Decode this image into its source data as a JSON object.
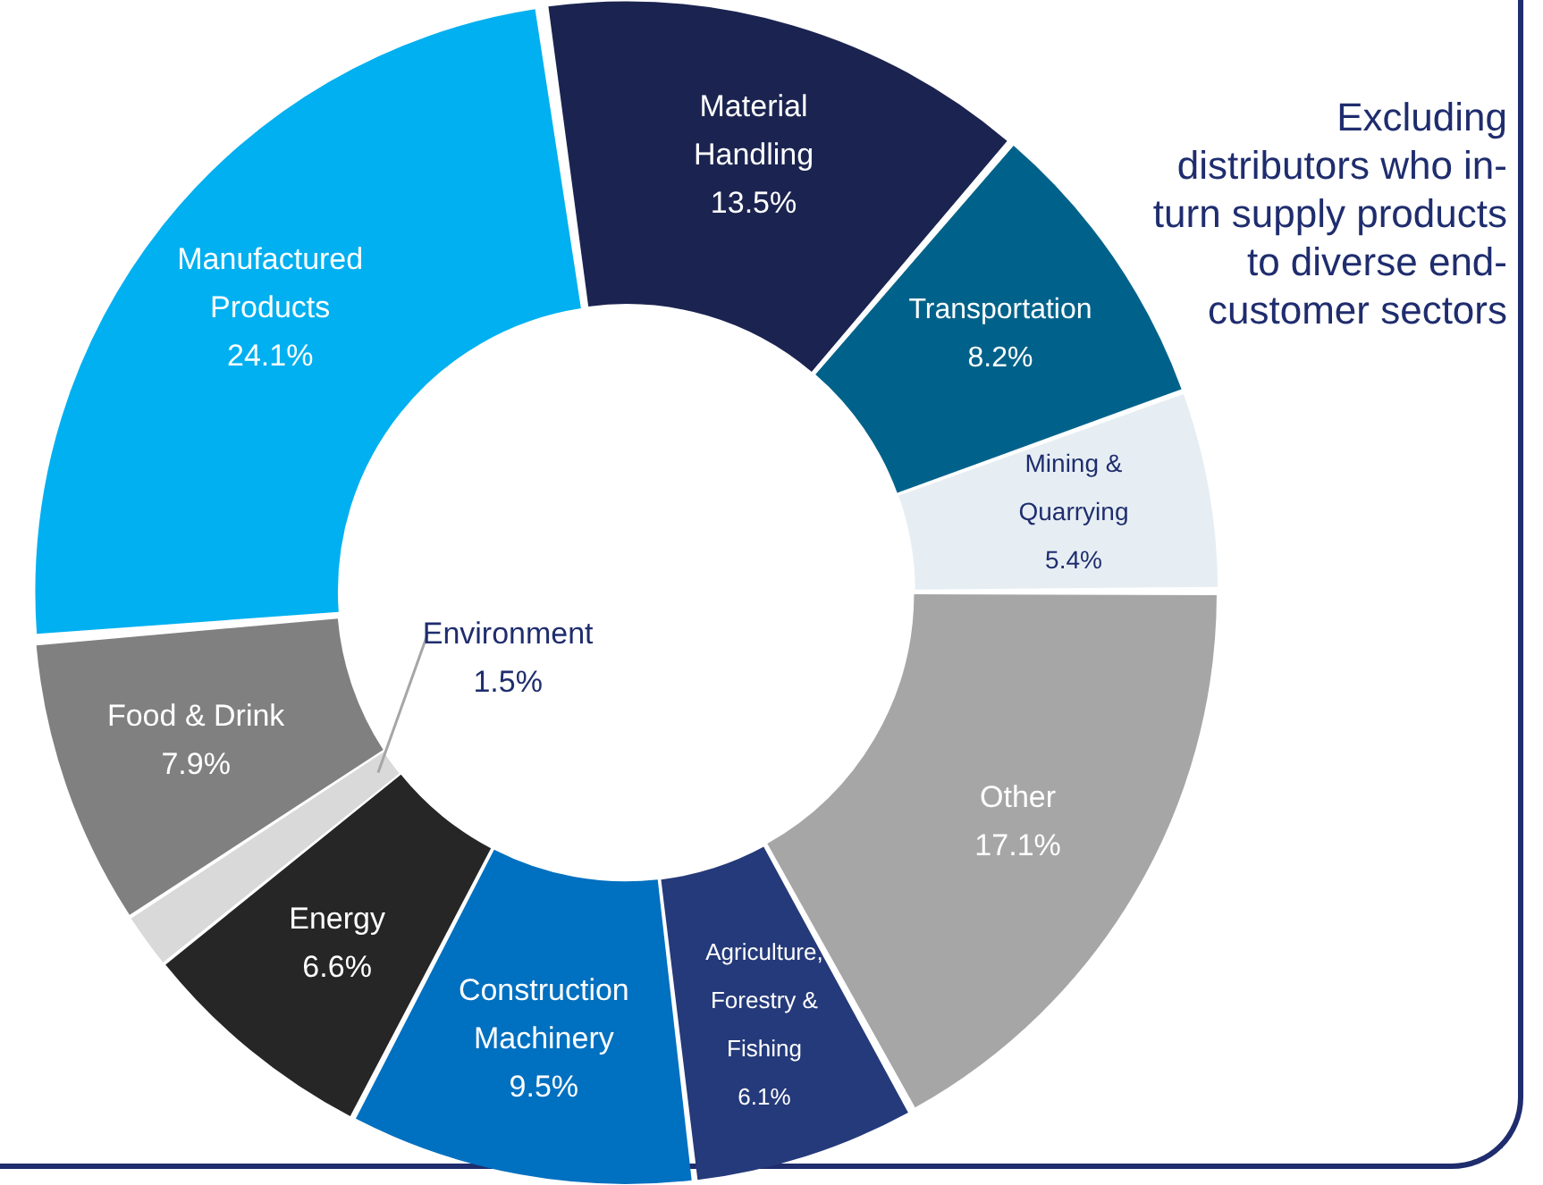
{
  "chart_data": {
    "type": "donut",
    "categories": [
      "Material Handling",
      "Transportation",
      "Mining & Quarrying",
      "Other",
      "Agriculture, Forestry & Fishing",
      "Construction Machinery",
      "Energy",
      "Environment",
      "Food & Drink",
      "Manufactured Products"
    ],
    "values": [
      13.5,
      8.2,
      5.4,
      17.1,
      6.1,
      9.5,
      6.6,
      1.5,
      7.9,
      24.1
    ],
    "value_labels": [
      "13.5%",
      "8.2%",
      "5.4%",
      "17.1%",
      "6.1%",
      "9.5%",
      "6.6%",
      "1.5%",
      "7.9%",
      "24.1%"
    ],
    "colors": [
      "#1b2450",
      "#00628a",
      "#e6eef3",
      "#a6a6a6",
      "#253a7a",
      "#0070c0",
      "#262626",
      "#d9d9d9",
      "#808080",
      "#00b0f0"
    ],
    "legend": false,
    "annotations": [
      "Excluding distributors who in-turn supply products to diverse end-customer sectors"
    ]
  }
}
